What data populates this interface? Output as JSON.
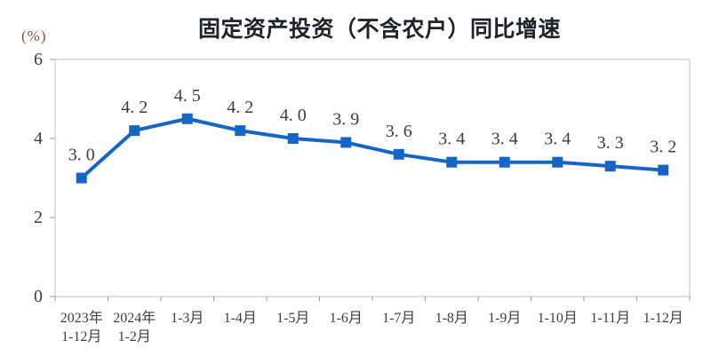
{
  "chart_data": {
    "type": "line",
    "title": "固定资产投资（不含农户）同比增速",
    "y_unit_label": "(%)",
    "categories": [
      [
        "2023年",
        "1-12月"
      ],
      [
        "2024年",
        "1-2月"
      ],
      [
        "1-3月"
      ],
      [
        "1-4月"
      ],
      [
        "1-5月"
      ],
      [
        "1-6月"
      ],
      [
        "1-7月"
      ],
      [
        "1-8月"
      ],
      [
        "1-9月"
      ],
      [
        "1-10月"
      ],
      [
        "1-11月"
      ],
      [
        "1-12月"
      ]
    ],
    "series": [
      {
        "name": "固定资产投资（不含农户）同比增速",
        "values": [
          3.0,
          4.2,
          4.5,
          4.2,
          4.0,
          3.9,
          3.6,
          3.4,
          3.4,
          3.4,
          3.3,
          3.2
        ]
      }
    ],
    "data_labels": [
      "3.0",
      "4.2",
      "4.5",
      "4.2",
      "4.0",
      "3.9",
      "3.6",
      "3.4",
      "3.4",
      "3.4",
      "3.3",
      "3.2"
    ],
    "xlabel": "",
    "ylabel": "(%)",
    "ylim": [
      0,
      6
    ],
    "yticks": [
      0,
      2,
      4,
      6
    ],
    "grid": false,
    "legend_position": "none",
    "marker_style": "square",
    "line_color": "#1565c8",
    "axis_text_color": "#3e3e3e",
    "unit_label_color": "#825248",
    "plot_border_color": "#c0c0c0",
    "tick_color": "#9a9a9a"
  }
}
